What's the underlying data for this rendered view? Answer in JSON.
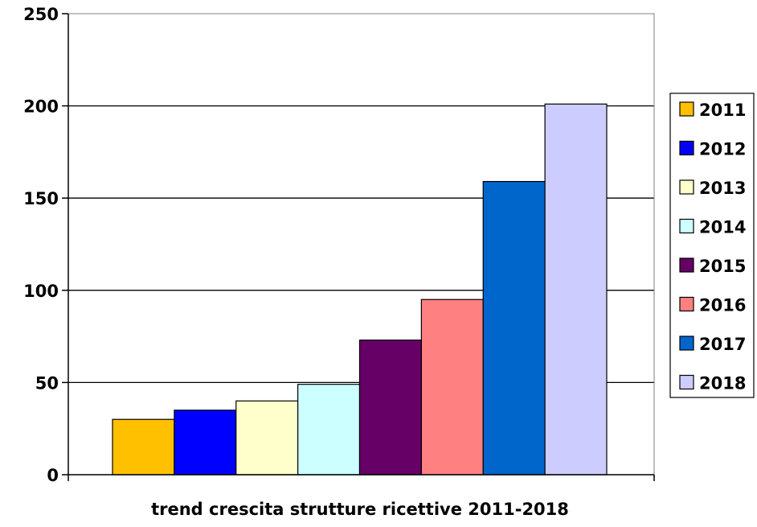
{
  "chart_data": {
    "type": "bar",
    "title": "",
    "xlabel": "trend crescita strutture ricettive 2011-2018",
    "ylabel": "",
    "ylim": [
      0,
      250
    ],
    "yticks": [
      0,
      50,
      100,
      150,
      200,
      250
    ],
    "grid": true,
    "legend_position": "right",
    "series": [
      {
        "name": "2011",
        "value": 30,
        "color": "#FFC000"
      },
      {
        "name": "2012",
        "value": 35,
        "color": "#0000FF"
      },
      {
        "name": "2013",
        "value": 40,
        "color": "#FFFFCC"
      },
      {
        "name": "2014",
        "value": 49,
        "color": "#CCFFFF"
      },
      {
        "name": "2015",
        "value": 73,
        "color": "#660066"
      },
      {
        "name": "2016",
        "value": 95,
        "color": "#FF8080"
      },
      {
        "name": "2017",
        "value": 159,
        "color": "#0066CC"
      },
      {
        "name": "2018",
        "value": 201,
        "color": "#CCCCFF"
      }
    ]
  }
}
